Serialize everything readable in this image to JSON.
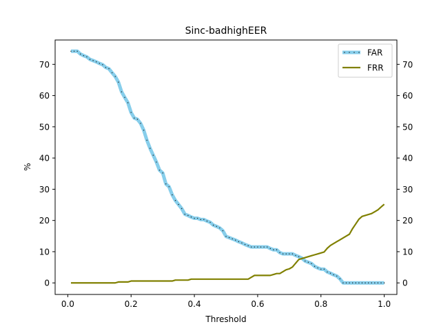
{
  "chart_data": {
    "type": "line",
    "title": "Sinc-badhighEER",
    "xlabel": "Threshold",
    "ylabel": "%",
    "xlim": [
      -0.04,
      1.04
    ],
    "ylim": [
      -3.7,
      77.8
    ],
    "xticks": [
      0.0,
      0.2,
      0.4,
      0.6,
      0.8,
      1.0
    ],
    "xtick_labels": [
      "0.0",
      "0.2",
      "0.4",
      "0.6",
      "0.8",
      "1.0"
    ],
    "yticks": [
      0,
      10,
      20,
      30,
      40,
      50,
      60,
      70
    ],
    "ytick_labels": [
      "0",
      "10",
      "20",
      "30",
      "40",
      "50",
      "60",
      "70"
    ],
    "right_axis_ticks": true,
    "grid": false,
    "legend_position": "top-right",
    "series": [
      {
        "name": "FAR",
        "color": "#87ceeb",
        "marker": "dotted-center",
        "x": [
          0.01,
          0.02,
          0.03,
          0.04,
          0.05,
          0.06,
          0.07,
          0.08,
          0.09,
          0.1,
          0.11,
          0.12,
          0.13,
          0.14,
          0.15,
          0.16,
          0.17,
          0.18,
          0.19,
          0.2,
          0.21,
          0.22,
          0.23,
          0.24,
          0.25,
          0.26,
          0.27,
          0.28,
          0.29,
          0.3,
          0.31,
          0.32,
          0.33,
          0.34,
          0.35,
          0.36,
          0.37,
          0.38,
          0.39,
          0.4,
          0.41,
          0.42,
          0.43,
          0.44,
          0.45,
          0.46,
          0.47,
          0.48,
          0.49,
          0.5,
          0.51,
          0.52,
          0.53,
          0.54,
          0.55,
          0.56,
          0.57,
          0.58,
          0.59,
          0.6,
          0.61,
          0.62,
          0.63,
          0.64,
          0.65,
          0.66,
          0.67,
          0.68,
          0.69,
          0.7,
          0.71,
          0.72,
          0.73,
          0.74,
          0.75,
          0.76,
          0.77,
          0.78,
          0.79,
          0.8,
          0.81,
          0.82,
          0.83,
          0.84,
          0.85,
          0.86,
          0.87,
          0.88,
          0.89,
          0.9,
          0.91,
          0.92,
          0.93,
          0.94,
          0.95,
          0.96,
          0.97,
          0.98,
          0.99,
          1.0
        ],
        "y": [
          74.2,
          74.2,
          74.2,
          73.3,
          72.8,
          72.4,
          71.6,
          71.2,
          70.8,
          70.3,
          69.9,
          69.0,
          68.6,
          67.3,
          66.1,
          64.3,
          61.2,
          59.4,
          57.7,
          54.6,
          52.8,
          52.4,
          51.1,
          48.9,
          45.7,
          43.1,
          40.9,
          38.7,
          36.1,
          35.2,
          31.7,
          30.8,
          28.2,
          26.4,
          25.1,
          23.8,
          22.0,
          21.6,
          21.1,
          20.7,
          20.7,
          20.3,
          20.3,
          19.8,
          19.4,
          18.5,
          18.1,
          17.6,
          16.7,
          14.9,
          14.5,
          14.1,
          13.7,
          13.2,
          12.8,
          12.3,
          11.9,
          11.5,
          11.5,
          11.5,
          11.5,
          11.5,
          11.5,
          11.0,
          10.6,
          10.6,
          9.7,
          9.3,
          9.3,
          9.3,
          9.3,
          8.8,
          8.4,
          7.9,
          7.0,
          6.6,
          6.2,
          5.3,
          4.8,
          4.4,
          4.4,
          3.5,
          3.1,
          2.6,
          2.2,
          1.3,
          0.0,
          0.0,
          0.0,
          0.0,
          0.0,
          0.0,
          0.0,
          0.0,
          0.0,
          0.0,
          0.0,
          0.0,
          0.0,
          0.0
        ]
      },
      {
        "name": "FRR",
        "color": "#808000",
        "marker": "none",
        "x": [
          0.01,
          0.02,
          0.03,
          0.04,
          0.05,
          0.06,
          0.07,
          0.08,
          0.09,
          0.1,
          0.11,
          0.12,
          0.13,
          0.14,
          0.15,
          0.16,
          0.17,
          0.18,
          0.19,
          0.2,
          0.21,
          0.22,
          0.23,
          0.24,
          0.25,
          0.26,
          0.27,
          0.28,
          0.29,
          0.3,
          0.31,
          0.32,
          0.33,
          0.34,
          0.35,
          0.36,
          0.37,
          0.38,
          0.39,
          0.4,
          0.41,
          0.42,
          0.43,
          0.44,
          0.45,
          0.46,
          0.47,
          0.48,
          0.49,
          0.5,
          0.51,
          0.52,
          0.53,
          0.54,
          0.55,
          0.56,
          0.57,
          0.58,
          0.59,
          0.6,
          0.61,
          0.62,
          0.63,
          0.64,
          0.65,
          0.66,
          0.67,
          0.68,
          0.69,
          0.7,
          0.71,
          0.72,
          0.73,
          0.74,
          0.75,
          0.76,
          0.77,
          0.78,
          0.79,
          0.8,
          0.81,
          0.82,
          0.83,
          0.84,
          0.85,
          0.86,
          0.87,
          0.88,
          0.89,
          0.9,
          0.91,
          0.92,
          0.93,
          0.94,
          0.95,
          0.96,
          0.97,
          0.98,
          0.99,
          1.0
        ],
        "y": [
          0.0,
          0.0,
          0.0,
          0.0,
          0.0,
          0.0,
          0.0,
          0.0,
          0.0,
          0.0,
          0.0,
          0.0,
          0.0,
          0.0,
          0.0,
          0.3,
          0.3,
          0.3,
          0.3,
          0.6,
          0.6,
          0.6,
          0.6,
          0.6,
          0.6,
          0.6,
          0.6,
          0.6,
          0.6,
          0.6,
          0.6,
          0.6,
          0.6,
          0.9,
          0.9,
          0.9,
          0.9,
          0.9,
          1.2,
          1.2,
          1.2,
          1.2,
          1.2,
          1.2,
          1.2,
          1.2,
          1.2,
          1.2,
          1.2,
          1.2,
          1.2,
          1.2,
          1.2,
          1.2,
          1.2,
          1.2,
          1.2,
          1.8,
          2.4,
          2.4,
          2.4,
          2.4,
          2.4,
          2.4,
          2.7,
          3.0,
          3.0,
          3.6,
          4.2,
          4.5,
          5.1,
          6.3,
          7.5,
          7.8,
          8.1,
          8.4,
          8.7,
          9.0,
          9.3,
          9.6,
          9.9,
          11.1,
          12.0,
          12.6,
          13.2,
          13.8,
          14.4,
          15.0,
          15.6,
          17.4,
          18.9,
          20.4,
          21.3,
          21.6,
          21.9,
          22.2,
          22.8,
          23.4,
          24.3,
          25.2
        ]
      }
    ]
  }
}
